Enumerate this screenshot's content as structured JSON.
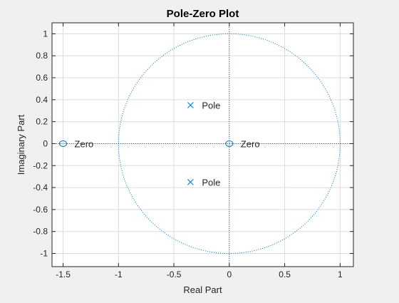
{
  "window": {
    "background": "#f0f0f0"
  },
  "chart_data": {
    "type": "scatter",
    "title": "Pole-Zero Plot",
    "xlabel": "Real Part",
    "ylabel": "Imaginary Part",
    "xlim": [
      -1.6,
      1.12
    ],
    "ylim": [
      -1.12,
      1.1
    ],
    "x_ticks": [
      -1.5,
      -1,
      -0.5,
      0,
      0.5,
      1
    ],
    "x_tick_labels": [
      "-1.5",
      "-1",
      "-0.5",
      "0",
      "0.5",
      "1"
    ],
    "y_ticks": [
      1,
      0.8,
      0.6,
      0.4,
      0.2,
      0,
      -0.2,
      -0.4,
      -0.6,
      -0.8,
      -1
    ],
    "y_tick_labels": [
      "1",
      "0.8",
      "0.6",
      "0.4",
      "0.2",
      "0",
      "-0.2",
      "-0.4",
      "-0.6",
      "-0.8",
      "-1"
    ],
    "grid": true,
    "unit_circle": true,
    "colors": {
      "markers": "#0072bd",
      "reference_lines": "#0072bd",
      "axes_bg": "#ffffff",
      "grid": "#dcdcdc",
      "text": "#262626"
    },
    "series": [
      {
        "marker": "x",
        "points": [
          {
            "x": -0.35,
            "y": 0.35,
            "label": "Pole"
          },
          {
            "x": -0.35,
            "y": -0.35,
            "label": "Pole"
          }
        ]
      },
      {
        "marker": "o",
        "points": [
          {
            "x": -1.5,
            "y": 0,
            "label": "Zero"
          },
          {
            "x": 0,
            "y": 0,
            "label": "Zero"
          }
        ]
      }
    ]
  }
}
